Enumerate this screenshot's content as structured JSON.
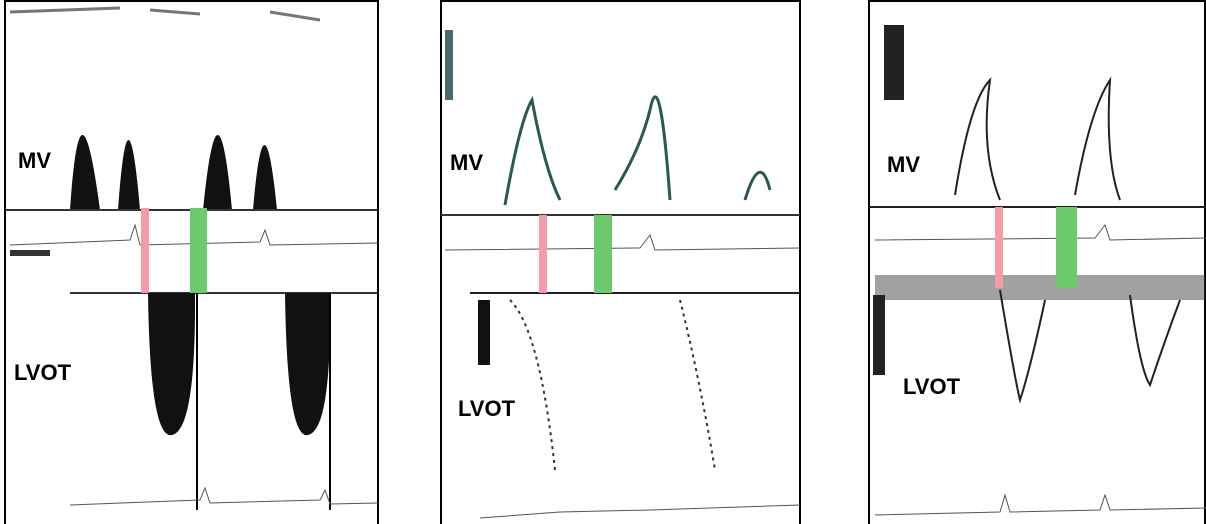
{
  "panels": [
    {
      "top_label": "MV",
      "bottom_label": "LVOT"
    },
    {
      "top_label": "MV",
      "bottom_label": "LVOT"
    },
    {
      "top_label": "MV",
      "bottom_label": "LVOT"
    }
  ]
}
